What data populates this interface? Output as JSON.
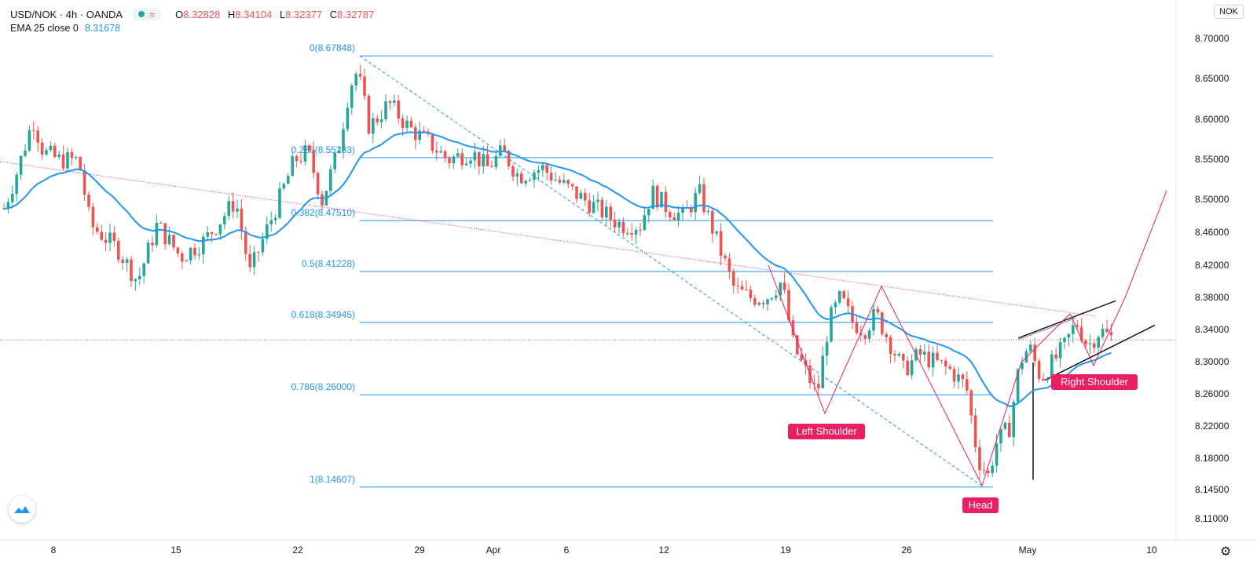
{
  "legend": {
    "symbol": "USD/NOK · 4h · OANDA",
    "open_label": "O",
    "open": "8.32828",
    "high_label": "H",
    "high": "8.34104",
    "low_label": "L",
    "low": "8.32377",
    "close_label": "C",
    "close": "8.32787",
    "ema_label": "EMA 25 close 0",
    "ema_value": "8.31678"
  },
  "currency": "NOK",
  "chart_data": {
    "type": "candlestick",
    "x_ticks": [
      "8",
      "15",
      "22",
      "29",
      "Apr",
      "6",
      "12",
      "19",
      "26",
      "May",
      "10"
    ],
    "y_ticks": [
      "8.70000",
      "8.65000",
      "8.60000",
      "8.55000",
      "8.50000",
      "8.46000",
      "8.42000",
      "8.38000",
      "8.34000",
      "8.30000",
      "8.26000",
      "8.22000",
      "8.18000",
      "8.14500",
      "8.11000"
    ],
    "ylim": [
      8.1,
      8.72
    ],
    "current_price": 8.32787,
    "fibonacci": [
      {
        "label": "0(8.67848)",
        "value": 8.67848
      },
      {
        "label": "0.236(8.55283)",
        "value": 8.55283
      },
      {
        "label": "0.382(8.47510)",
        "value": 8.4751
      },
      {
        "label": "0.5(8.41228)",
        "value": 8.41228
      },
      {
        "label": "0.618(8.34945)",
        "value": 8.34945
      },
      {
        "label": "0.786(8.26000)",
        "value": 8.26
      },
      {
        "label": "1(8.14607)",
        "value": 8.14607
      }
    ],
    "annotations": [
      "Left Shoulder",
      "Head",
      "Right Shoulder"
    ],
    "ema_period": 25,
    "colors": {
      "up": "#26a69a",
      "down": "#ef5350",
      "ema": "#2196f3",
      "fib": "#2196f3",
      "pattern": "#e91e63"
    }
  }
}
